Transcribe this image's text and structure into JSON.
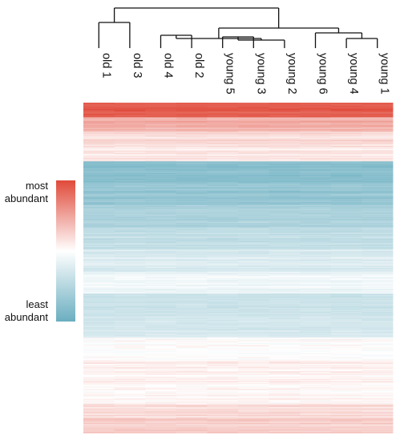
{
  "chart_data": {
    "type": "heatmap",
    "columns": [
      "old 1",
      "old 3",
      "old 4",
      "old 2",
      "young 5",
      "young 3",
      "young 2",
      "young 6",
      "young 4",
      "young 1"
    ],
    "dendrogram": [
      {
        "left": [
          "old 1"
        ],
        "right": [
          "old 3"
        ]
      },
      {
        "left": [
          "young 5"
        ],
        "right": [
          "young 3"
        ]
      },
      {
        "left": [
          "young 5",
          "young 3"
        ],
        "right": [
          "young 2"
        ]
      },
      {
        "left": [
          "young 4"
        ],
        "right": [
          "young 1"
        ]
      },
      {
        "left": [
          "young 6"
        ],
        "right": [
          "young 4",
          "young 1"
        ]
      },
      {
        "left": [
          "old 4"
        ],
        "right": [
          "old 2"
        ]
      },
      {
        "left": [
          "old 4",
          "old 2"
        ],
        "right": [
          "young 5",
          "young 3",
          "young 2"
        ]
      },
      {
        "left": [
          "old 4",
          "old 2",
          "young 5",
          "young 3",
          "young 2"
        ],
        "right": [
          "young 6",
          "young 4",
          "young 1"
        ]
      },
      {
        "left": [
          "old 1",
          "old 3"
        ],
        "right": [
          "old 4",
          "old 2",
          "young 5",
          "young 3",
          "young 2",
          "young 6",
          "young 4",
          "young 1"
        ]
      }
    ],
    "row_blocks": [
      {
        "rows": 20,
        "level": 0.95
      },
      {
        "rows": 20,
        "level": 0.72
      },
      {
        "rows": 20,
        "level": 0.6
      },
      {
        "rows": 20,
        "level": 0.56
      },
      {
        "rows": 30,
        "level": 0.1
      },
      {
        "rows": 30,
        "level": 0.15
      },
      {
        "rows": 30,
        "level": 0.22
      },
      {
        "rows": 30,
        "level": 0.3
      },
      {
        "rows": 30,
        "level": 0.38
      },
      {
        "rows": 30,
        "level": 0.45
      },
      {
        "rows": 30,
        "level": 0.33
      },
      {
        "rows": 30,
        "level": 0.36
      },
      {
        "rows": 30,
        "level": 0.5
      },
      {
        "rows": 30,
        "level": 0.54
      },
      {
        "rows": 30,
        "level": 0.52
      },
      {
        "rows": 20,
        "level": 0.6
      },
      {
        "rows": 20,
        "level": 0.63
      }
    ],
    "color_scale": {
      "high": "#e04a3a",
      "mid": "#ffffff",
      "low": "#6aaec0"
    },
    "legend": {
      "high_label": [
        "most",
        "abundant"
      ],
      "low_label": [
        "least",
        "abundant"
      ],
      "placement": "left"
    }
  }
}
